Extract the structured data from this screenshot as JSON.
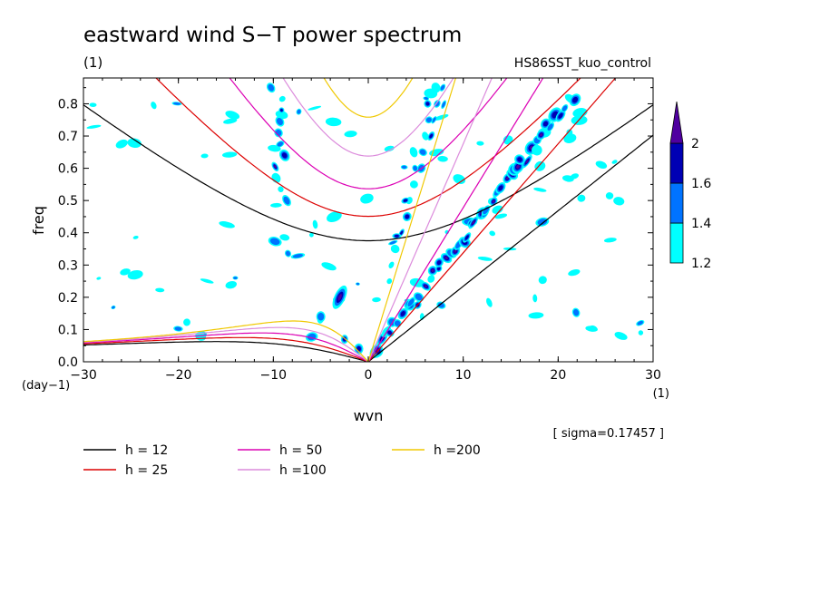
{
  "chart_data": {
    "type": "contour",
    "title": "eastward wind S−T power spectrum",
    "subtitle_left": "(1)",
    "subtitle_right": "HS86SST_kuo_control",
    "xlabel": "wvn",
    "ylabel": "freq",
    "x_unit": "(1)",
    "y_unit": "(day−1)",
    "xlim": [
      -30,
      30
    ],
    "ylim": [
      0,
      0.88
    ],
    "x_ticks": [
      -30,
      -20,
      -10,
      0,
      10,
      20,
      30
    ],
    "x_tick_labels": [
      "−30",
      "−20",
      "−10",
      "0",
      "10",
      "20",
      "30"
    ],
    "y_ticks": [
      0,
      0.1,
      0.2,
      0.3,
      0.4,
      0.5,
      0.6,
      0.7,
      0.8
    ],
    "y_tick_labels": [
      "0.0",
      "0.1",
      "0.2",
      "0.3",
      "0.4",
      "0.5",
      "0.6",
      "0.7",
      "0.8"
    ],
    "sigma_text": "[ sigma=0.17457 ]",
    "colorbar": {
      "levels": [
        1.2,
        1.4,
        1.6,
        2
      ],
      "labels": [
        "1.2",
        "1.4",
        "1.6",
        "2"
      ],
      "colors": [
        "#00ffff",
        "#0073ff",
        "#0000b4",
        "#5000a0"
      ]
    },
    "dispersion_curves": [
      {
        "h": 12,
        "label": "h = 12",
        "color": "#000000"
      },
      {
        "h": 25,
        "label": "h = 25",
        "color": "#dc0000"
      },
      {
        "h": 50,
        "label": "h = 50",
        "color": "#dc00b4"
      },
      {
        "h": 100,
        "label": "h =100",
        "color": "#dc8cdc"
      },
      {
        "h": 200,
        "label": "h =200",
        "color": "#f0c800"
      }
    ],
    "high_power_regions": [
      {
        "wvn": 1,
        "freq": 0.04,
        "level": 2
      },
      {
        "wvn": -3,
        "freq": 0.2,
        "level": 2
      },
      {
        "wvn": 4,
        "freq": 0.5,
        "level": 2
      },
      {
        "wvn": 10,
        "freq": 0.45,
        "level": 2
      },
      {
        "wvn": 13,
        "freq": 0.6,
        "level": 2
      },
      {
        "wvn": 18,
        "freq": 0.8,
        "level": 2
      },
      {
        "wvn": -9,
        "freq": 0.8,
        "level": 1.6
      },
      {
        "wvn": -6,
        "freq": 0.58,
        "level": 1.6
      },
      {
        "wvn": 3,
        "freq": 0.39,
        "level": 1.6
      }
    ]
  }
}
